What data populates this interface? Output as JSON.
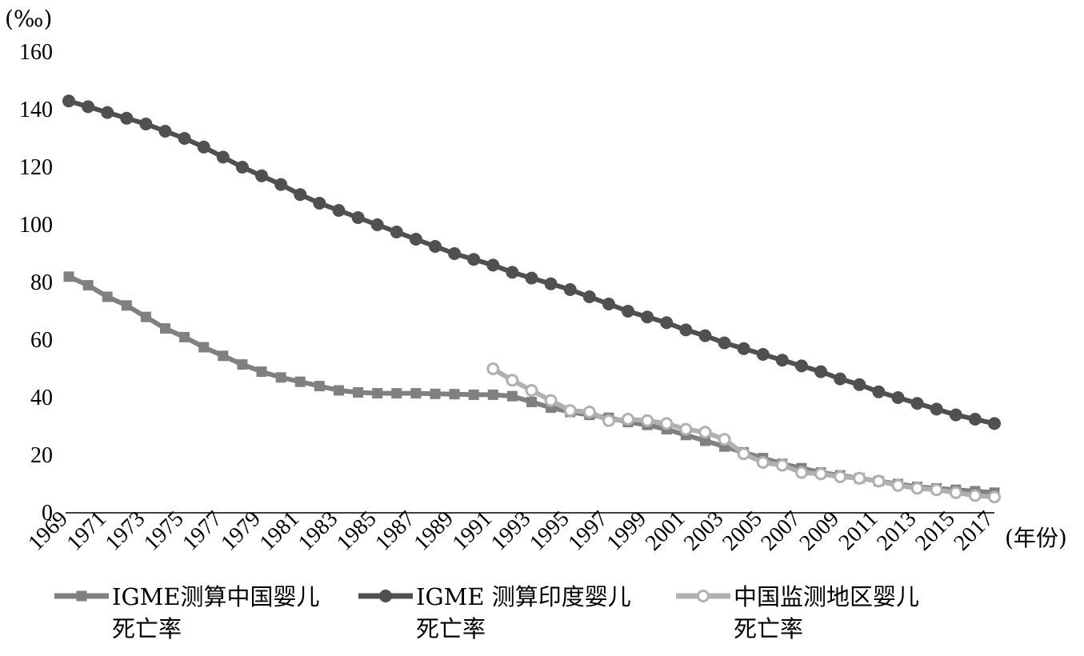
{
  "chart_data": {
    "type": "line",
    "ylabel": "(‰)",
    "xlabel": "(年份)",
    "ylim": [
      0,
      160
    ],
    "yticks": [
      0,
      20,
      40,
      60,
      80,
      100,
      120,
      140,
      160
    ],
    "xlim": [
      1969,
      2017
    ],
    "xticks": [
      1969,
      1971,
      1973,
      1975,
      1977,
      1979,
      1981,
      1983,
      1985,
      1987,
      1989,
      1991,
      1993,
      1995,
      1997,
      1999,
      2001,
      2003,
      2005,
      2007,
      2009,
      2011,
      2013,
      2015,
      2017
    ],
    "grid": false,
    "legend_position": "bottom",
    "series": [
      {
        "name": "IGME测算中国婴儿死亡率",
        "name_lines": [
          "IGME测算中国婴儿",
          "死亡率"
        ],
        "marker": "square",
        "color": "#808080",
        "x": [
          1969,
          1970,
          1971,
          1972,
          1973,
          1974,
          1975,
          1976,
          1977,
          1978,
          1979,
          1980,
          1981,
          1982,
          1983,
          1984,
          1985,
          1986,
          1987,
          1988,
          1989,
          1990,
          1991,
          1992,
          1993,
          1994,
          1995,
          1996,
          1997,
          1998,
          1999,
          2000,
          2001,
          2002,
          2003,
          2004,
          2005,
          2006,
          2007,
          2008,
          2009,
          2010,
          2011,
          2012,
          2013,
          2014,
          2015,
          2016,
          2017
        ],
        "y": [
          82,
          79,
          75,
          72,
          68,
          64,
          61,
          57.5,
          54.5,
          51.5,
          49,
          47,
          45.5,
          44,
          42.5,
          41.8,
          41.5,
          41.5,
          41.5,
          41.3,
          41.2,
          41,
          41,
          40.5,
          38.5,
          36.5,
          35,
          34,
          33,
          31.5,
          30.5,
          29,
          27,
          25,
          23,
          21,
          19,
          17,
          15.5,
          14,
          13,
          12,
          11,
          10,
          9,
          8.5,
          8,
          7.5,
          7
        ]
      },
      {
        "name": "IGME 测算印度婴儿死亡率",
        "name_lines": [
          "IGME 测算印度婴儿",
          "死亡率"
        ],
        "marker": "circle",
        "color": "#505050",
        "x": [
          1969,
          1970,
          1971,
          1972,
          1973,
          1974,
          1975,
          1976,
          1977,
          1978,
          1979,
          1980,
          1981,
          1982,
          1983,
          1984,
          1985,
          1986,
          1987,
          1988,
          1989,
          1990,
          1991,
          1992,
          1993,
          1994,
          1995,
          1996,
          1997,
          1998,
          1999,
          2000,
          2001,
          2002,
          2003,
          2004,
          2005,
          2006,
          2007,
          2008,
          2009,
          2010,
          2011,
          2012,
          2013,
          2014,
          2015,
          2016,
          2017
        ],
        "y": [
          143,
          141,
          139,
          137,
          135,
          132.5,
          130,
          127,
          123.5,
          120,
          117,
          114,
          110.5,
          107.5,
          105,
          102.5,
          100,
          97.5,
          95,
          92.5,
          90,
          88,
          86,
          83.5,
          81.5,
          79.5,
          77.5,
          75,
          72.5,
          70,
          68,
          66,
          63.5,
          61.5,
          59,
          57,
          55,
          53,
          51,
          49,
          46.5,
          44.5,
          42,
          40,
          38,
          36,
          34,
          32.5,
          31
        ]
      },
      {
        "name": "中国监测地区婴儿死亡率",
        "name_lines": [
          "中国监测地区婴儿",
          "死亡率"
        ],
        "marker": "circle-open",
        "color": "#b0b0b0",
        "x": [
          1991,
          1992,
          1993,
          1994,
          1995,
          1996,
          1997,
          1998,
          1999,
          2000,
          2001,
          2002,
          2003,
          2004,
          2005,
          2006,
          2007,
          2008,
          2009,
          2010,
          2011,
          2012,
          2013,
          2014,
          2015,
          2016,
          2017
        ],
        "y": [
          50,
          46,
          42.5,
          39,
          35.5,
          35,
          32,
          32.5,
          32,
          31,
          29,
          28,
          25.5,
          20.5,
          17.5,
          16.5,
          14,
          13.5,
          12.5,
          12,
          11,
          9.5,
          8.5,
          8,
          7,
          6,
          5.5
        ]
      }
    ]
  }
}
